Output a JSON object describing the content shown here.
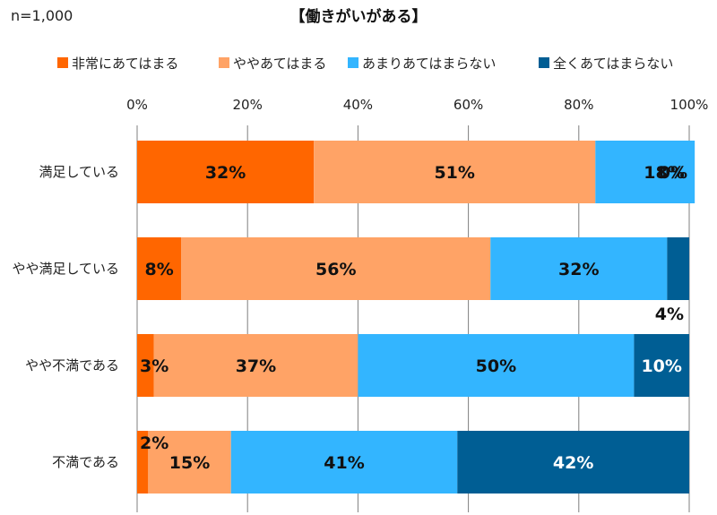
{
  "sample_size": "n=1,000",
  "chart_data": {
    "type": "bar",
    "orientation": "horizontal",
    "stacked": true,
    "title": "【働きがいがある】",
    "categories": [
      "満足している",
      "やや満足している",
      "やや不満である",
      "不満である"
    ],
    "series": [
      {
        "name": "非常にあてはまる",
        "color": "#ff6600",
        "values": [
          32,
          8,
          3,
          2
        ],
        "labels": [
          "32%",
          "8%",
          "3%",
          "2%"
        ]
      },
      {
        "name": "ややあてはまる",
        "color": "#ffa366",
        "values": [
          51,
          56,
          37,
          15
        ],
        "labels": [
          "51%",
          "56%",
          "37%",
          "15%"
        ]
      },
      {
        "name": "あまりあてはまらない",
        "color": "#33b5ff",
        "values": [
          18,
          32,
          50,
          41
        ],
        "labels": [
          "18%",
          "32%",
          "50%",
          "41%"
        ]
      },
      {
        "name": "全くあてはまらない",
        "color": "#005e94",
        "values": [
          0,
          4,
          10,
          42
        ],
        "labels": [
          "0%",
          "4%",
          "10%",
          "42%"
        ]
      }
    ],
    "xlim": [
      0,
      100
    ],
    "ticks": [
      "0%",
      "20%",
      "40%",
      "60%",
      "80%",
      "100%"
    ],
    "grid": true,
    "legend": "top"
  }
}
